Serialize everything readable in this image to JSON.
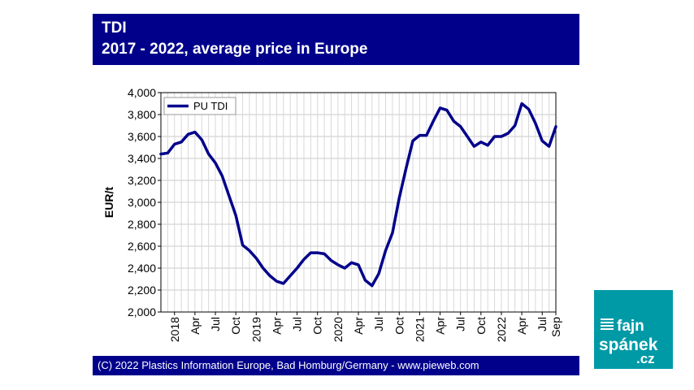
{
  "header": {
    "title": "TDI",
    "subtitle": "2017 - 2022, average price in Europe"
  },
  "footer": {
    "text": "(C) 2022 Plastics Information Europe, Bad Homburg/Germany - www.pieweb.com"
  },
  "logo": {
    "line1": "fajn",
    "line2": "spánek",
    "tld": ".cz",
    "brand_color": "#009aa6"
  },
  "chart_data": {
    "type": "line",
    "title": "TDI",
    "subtitle": "2017 - 2022, average price in Europe",
    "xlabel": "",
    "ylabel": "EUR/t",
    "ylim": [
      2000,
      4000
    ],
    "yticks": [
      2000,
      2200,
      2400,
      2600,
      2800,
      3000,
      3200,
      3400,
      3600,
      3800,
      4000
    ],
    "ytick_labels": [
      "2,000",
      "2,200",
      "2,400",
      "2,600",
      "2,800",
      "3,000",
      "3,200",
      "3,400",
      "3,600",
      "3,800",
      "4,000"
    ],
    "grid": true,
    "legend": "top-left",
    "x_range": [
      0,
      58
    ],
    "xtick_labels": [
      {
        "pos": 2,
        "label": "2018"
      },
      {
        "pos": 5,
        "label": "Apr"
      },
      {
        "pos": 8,
        "label": "Jul"
      },
      {
        "pos": 11,
        "label": "Oct"
      },
      {
        "pos": 14,
        "label": "2019"
      },
      {
        "pos": 17,
        "label": "Apr"
      },
      {
        "pos": 20,
        "label": "Jul"
      },
      {
        "pos": 23,
        "label": "Oct"
      },
      {
        "pos": 26,
        "label": "2020"
      },
      {
        "pos": 29,
        "label": "Apr"
      },
      {
        "pos": 32,
        "label": "Jul"
      },
      {
        "pos": 35,
        "label": "Oct"
      },
      {
        "pos": 38,
        "label": "2021"
      },
      {
        "pos": 41,
        "label": "Apr"
      },
      {
        "pos": 44,
        "label": "Jul"
      },
      {
        "pos": 47,
        "label": "Oct"
      },
      {
        "pos": 50,
        "label": "2022"
      },
      {
        "pos": 53,
        "label": "Apr"
      },
      {
        "pos": 56,
        "label": "Jul"
      },
      {
        "pos": 58,
        "label": "Sep"
      }
    ],
    "series": [
      {
        "name": "PU TDI",
        "color": "#00008b",
        "values": [
          3440,
          3450,
          3530,
          3550,
          3620,
          3640,
          3570,
          3440,
          3360,
          3240,
          3060,
          2880,
          2610,
          2560,
          2490,
          2400,
          2330,
          2280,
          2260,
          2330,
          2400,
          2480,
          2540,
          2540,
          2530,
          2470,
          2430,
          2400,
          2450,
          2430,
          2290,
          2240,
          2350,
          2560,
          2720,
          3040,
          3310,
          3560,
          3610,
          3610,
          3740,
          3860,
          3840,
          3740,
          3690,
          3600,
          3510,
          3550,
          3520,
          3600,
          3600,
          3630,
          3700,
          3900,
          3850,
          3720,
          3560,
          3510,
          3690
        ]
      }
    ]
  }
}
